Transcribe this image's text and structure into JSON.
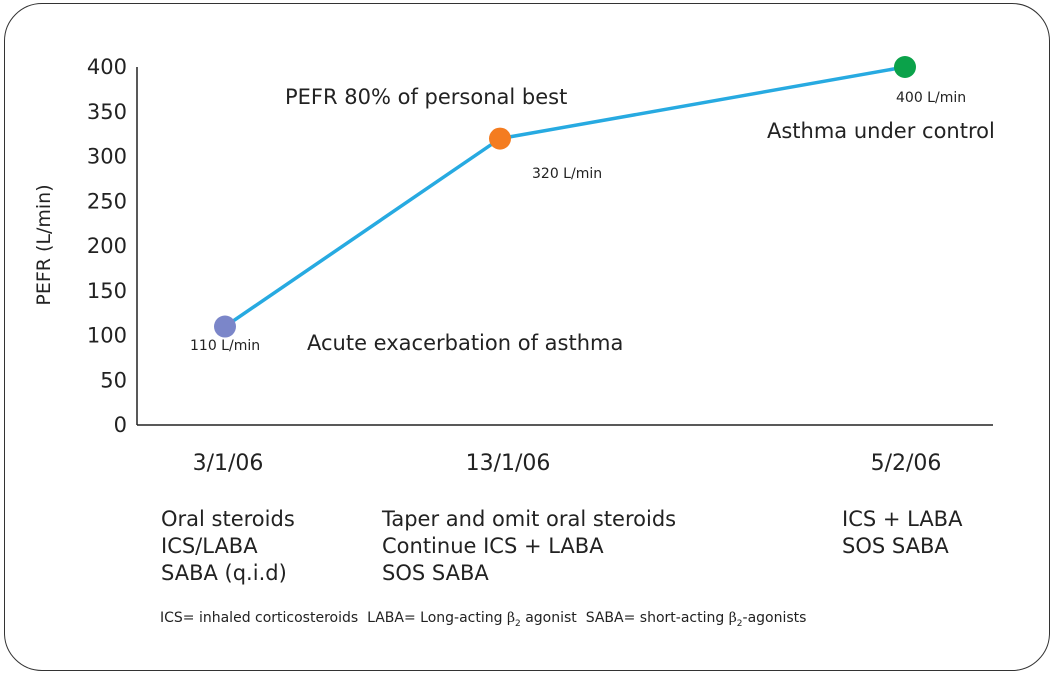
{
  "chart_data": {
    "type": "line",
    "ylabel": "PEFR (L/min)",
    "xlabel": "",
    "ylim": [
      0,
      400
    ],
    "yticks": [
      "0",
      "50",
      "100",
      "150",
      "200",
      "250",
      "300",
      "350",
      "400"
    ],
    "categories": [
      "3/1/06",
      "13/1/06",
      "5/2/06"
    ],
    "series": [
      {
        "values": [
          110,
          320,
          400
        ],
        "color": "#27aae1"
      }
    ],
    "points": [
      {
        "label": "110 L/min",
        "value": 110,
        "color": "#7b86c9"
      },
      {
        "label": "320 L/min",
        "value": 320,
        "color": "#f47c20"
      },
      {
        "label": "400 L/min",
        "value": 400,
        "color": "#0ba24a"
      }
    ],
    "annotations": [
      "PEFR 80% of personal best",
      "Asthma under control",
      "Acute exacerbation of asthma"
    ],
    "grid": false
  },
  "treatments": [
    {
      "lines": [
        "Oral steroids",
        "ICS/LABA",
        "SABA (q.i.d)"
      ]
    },
    {
      "lines": [
        "Taper and omit oral steroids",
        "Continue ICS + LABA",
        "SOS SABA"
      ]
    },
    {
      "lines": [
        "ICS + LABA",
        "SOS SABA"
      ]
    }
  ],
  "footnote": {
    "ics": "ICS= inhaled corticosteroids",
    "laba_prefix": "LABA= Long-acting",
    "laba_suffix": "agonist",
    "saba_prefix": "SABA= short-acting",
    "saba_suffix": "-agonists",
    "beta_symbol": "β",
    "beta_subscript": "2"
  }
}
